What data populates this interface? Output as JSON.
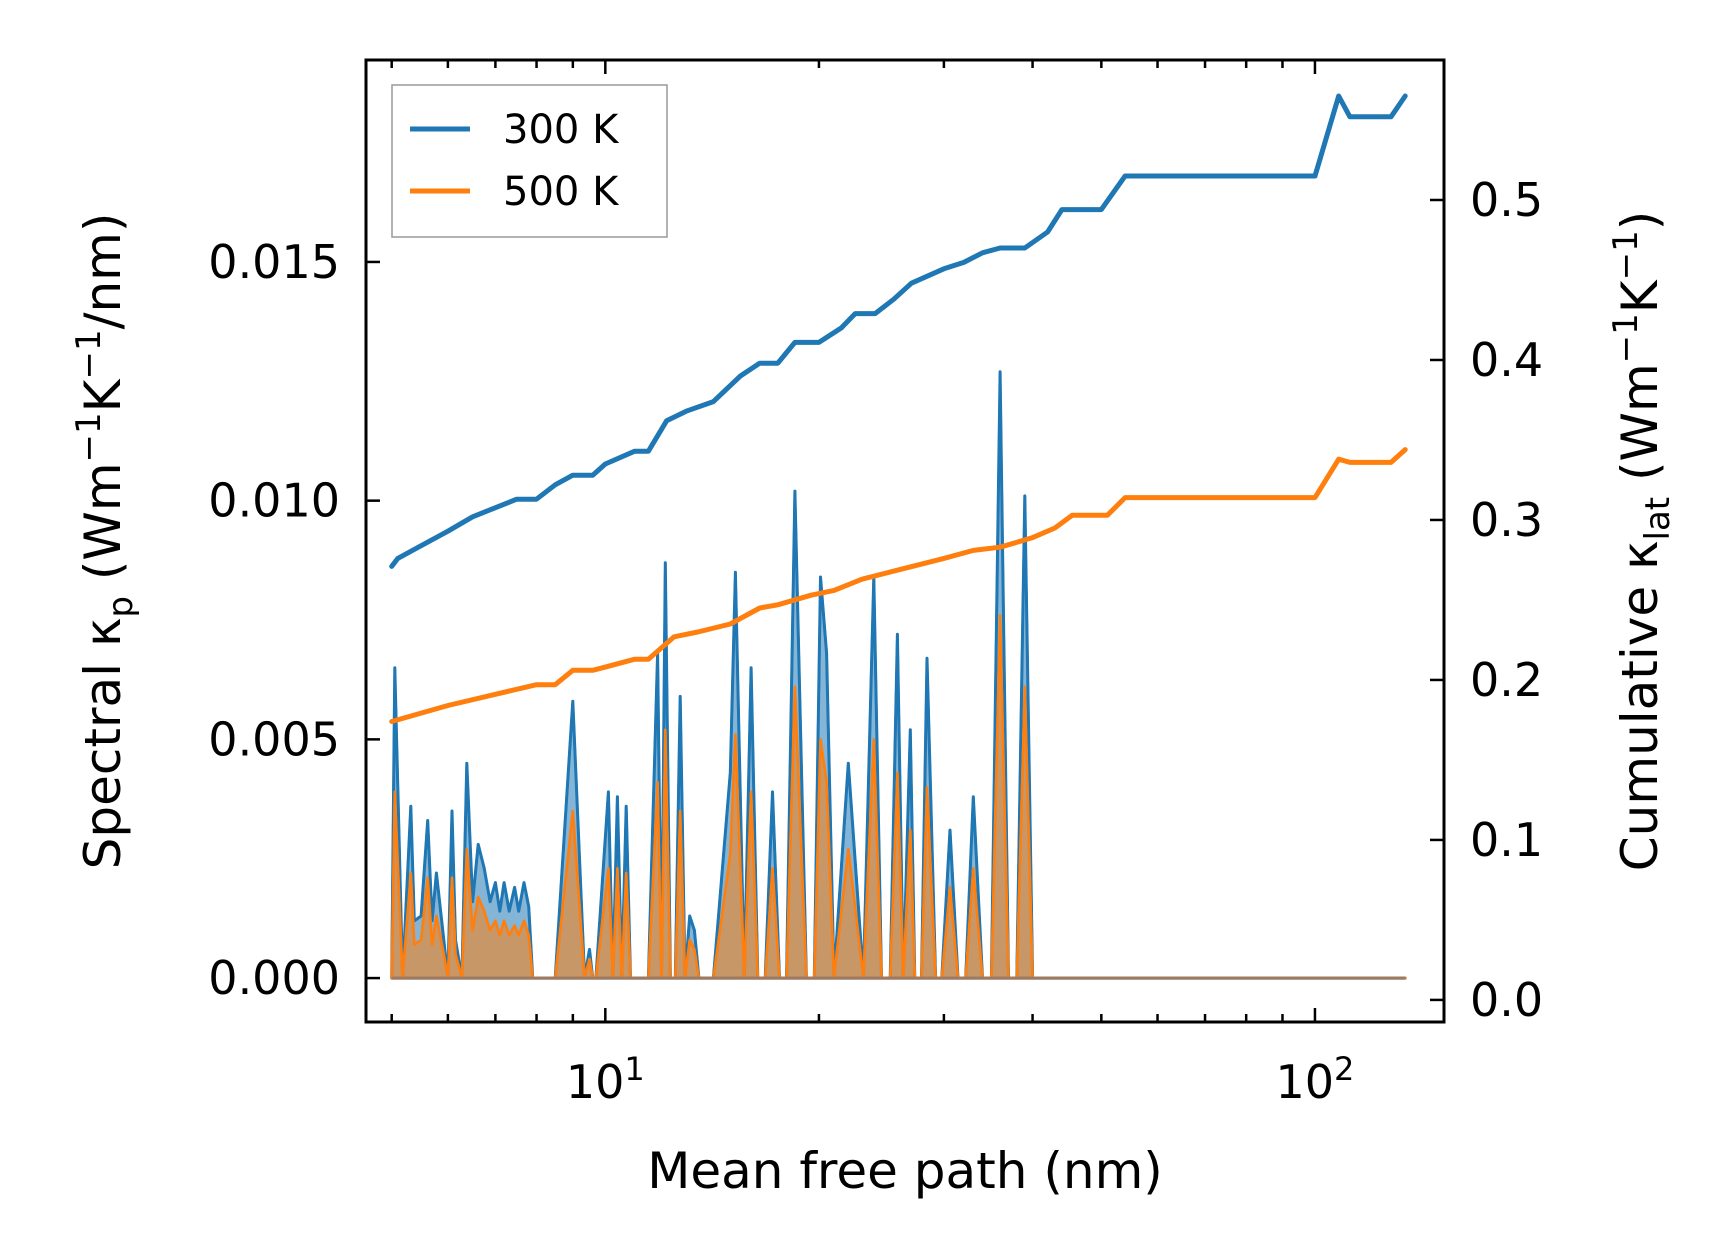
{
  "chart_data": {
    "type": "line",
    "x_scale": "log",
    "xlabel": "Mean free path (nm)",
    "xlim": [
      4.6,
      152
    ],
    "x_tick_labels": [
      {
        "value": 10,
        "base": "10",
        "exp": "1"
      },
      {
        "value": 100,
        "base": "10",
        "exp": "2"
      }
    ],
    "left_axis": {
      "label_parts": [
        "Spectral κ",
        "p",
        " (Wm",
        "−1",
        "K",
        "−1",
        "/nm)"
      ],
      "ylim": [
        -0.00092,
        0.01923
      ],
      "ticks": [
        0.0,
        0.005,
        0.01,
        0.015
      ],
      "tick_labels": [
        "0.000",
        "0.005",
        "0.010",
        "0.015"
      ]
    },
    "right_axis": {
      "label_parts": [
        "Cumulative κ",
        "lat",
        " (Wm",
        "−1",
        "K",
        "−1",
        ")"
      ],
      "ylim": [
        -0.0138,
        0.5875
      ],
      "ticks": [
        0.0,
        0.1,
        0.2,
        0.3,
        0.4,
        0.5
      ],
      "tick_labels": [
        "0.0",
        "0.1",
        "0.2",
        "0.3",
        "0.4",
        "0.5"
      ]
    },
    "legend": {
      "position": "top-left",
      "entries": [
        {
          "label": "300 K",
          "color": "#1f77b4"
        },
        {
          "label": "500 K",
          "color": "#ff7f0e"
        }
      ]
    },
    "series": [
      {
        "name": "300 K",
        "axis": "right",
        "kind": "cumulative",
        "color": "#1f77b4",
        "x": [
          5.0,
          5.1,
          5.4,
          6.0,
          6.5,
          7.5,
          8.0,
          8.5,
          9.0,
          9.6,
          10.0,
          11.0,
          11.5,
          12.2,
          13.0,
          14.2,
          15.5,
          16.5,
          17.5,
          18.5,
          20.0,
          21.5,
          22.5,
          24.0,
          25.5,
          27.0,
          30.0,
          32.0,
          34.0,
          36.0,
          39.0,
          42.0,
          44.0,
          45.5,
          50.0,
          54.0,
          100.0,
          108.0,
          112.0,
          128.0,
          134.0
        ],
        "y": [
          0.271,
          0.276,
          0.282,
          0.293,
          0.302,
          0.313,
          0.313,
          0.322,
          0.328,
          0.328,
          0.335,
          0.343,
          0.343,
          0.362,
          0.368,
          0.374,
          0.39,
          0.398,
          0.398,
          0.411,
          0.411,
          0.42,
          0.429,
          0.429,
          0.438,
          0.448,
          0.457,
          0.461,
          0.467,
          0.47,
          0.47,
          0.48,
          0.494,
          0.494,
          0.494,
          0.515,
          0.515,
          0.565,
          0.552,
          0.552,
          0.565
        ]
      },
      {
        "name": "500 K",
        "axis": "right",
        "kind": "cumulative",
        "color": "#ff7f0e",
        "x": [
          5.0,
          6.0,
          7.0,
          8.0,
          8.5,
          9.0,
          9.6,
          10.0,
          11.0,
          11.5,
          12.5,
          13.5,
          15.0,
          16.5,
          17.5,
          19.5,
          21.0,
          23.0,
          26.0,
          30.0,
          33.0,
          36.0,
          40.0,
          43.0,
          45.5,
          51.0,
          54.0,
          100.0,
          108.0,
          112.0,
          128.0,
          134.0
        ],
        "y": [
          0.174,
          0.184,
          0.191,
          0.197,
          0.197,
          0.206,
          0.206,
          0.208,
          0.213,
          0.213,
          0.227,
          0.23,
          0.235,
          0.245,
          0.247,
          0.253,
          0.256,
          0.263,
          0.269,
          0.276,
          0.281,
          0.283,
          0.289,
          0.295,
          0.303,
          0.303,
          0.314,
          0.314,
          0.338,
          0.336,
          0.336,
          0.344
        ]
      },
      {
        "name": "300 K spectral",
        "axis": "left",
        "kind": "spectral",
        "color": "#1f77b4",
        "x": [
          5.0,
          5.05,
          5.18,
          5.32,
          5.38,
          5.5,
          5.62,
          5.7,
          5.78,
          5.92,
          6.0,
          6.08,
          6.15,
          6.28,
          6.38,
          6.5,
          6.62,
          6.75,
          6.88,
          7.0,
          7.1,
          7.2,
          7.32,
          7.45,
          7.55,
          7.68,
          7.8,
          7.9,
          8.05,
          8.5,
          9.0,
          9.35,
          9.5,
          9.6,
          9.7,
          10.1,
          10.25,
          10.4,
          10.55,
          10.7,
          10.85,
          11.0,
          11.5,
          11.85,
          12.0,
          12.15,
          12.35,
          12.55,
          12.75,
          12.95,
          13.15,
          13.35,
          13.55,
          13.8,
          14.0,
          14.2,
          15.0,
          15.25,
          15.7,
          16.05,
          16.4,
          16.8,
          17.2,
          17.6,
          18.0,
          18.5,
          19.2,
          19.7,
          20.1,
          20.5,
          21.0,
          22.0,
          23.1,
          23.9,
          24.5,
          25.2,
          25.8,
          26.3,
          26.9,
          27.3,
          27.9,
          28.4,
          29.2,
          29.8,
          30.6,
          31.4,
          32.2,
          33.0,
          34.0,
          35.0,
          36.0,
          37.0,
          38.0,
          39.0,
          40.0,
          41.0,
          42.0,
          43.0,
          43.6,
          44.3,
          45.0,
          45.7,
          46.5,
          47.5,
          48.5,
          49.5,
          51.0,
          52.5,
          53.5,
          54.5,
          56.0,
          58.0,
          100.0,
          107.0,
          110.0,
          111.2,
          112.5,
          114.0,
          128.0,
          130.0,
          132.5,
          134.0
        ],
        "y": [
          0.0,
          0.0065,
          0.0,
          0.0036,
          0.0012,
          0.0013,
          0.0033,
          0.0012,
          0.0022,
          0.0008,
          0.0,
          0.0035,
          0.0008,
          0.0,
          0.0045,
          0.0016,
          0.0028,
          0.0023,
          0.0016,
          0.002,
          0.0014,
          0.002,
          0.0014,
          0.0019,
          0.0014,
          0.002,
          0.0015,
          0.0,
          0.0,
          0.0,
          0.0058,
          0.0,
          0.0006,
          0.0,
          0.0,
          0.0039,
          0.0,
          0.0038,
          0.0,
          0.0036,
          0.0,
          0.0,
          0.0,
          0.0068,
          0.0,
          0.0087,
          0.0,
          0.0,
          0.0059,
          0.0,
          0.0013,
          0.001,
          0.0,
          0.0,
          0.0,
          0.0,
          0.0043,
          0.0085,
          0.0,
          0.0065,
          0.0,
          0.0,
          0.0039,
          0.0,
          0.0,
          0.0102,
          0.0,
          0.0,
          0.0084,
          0.0068,
          0.0,
          0.0045,
          0.0,
          0.0084,
          0.0,
          0.0,
          0.0072,
          0.0,
          0.0052,
          0.0,
          0.0,
          0.0067,
          0.0,
          0.0,
          0.0031,
          0.0,
          0.0,
          0.0038,
          0.0,
          0.0,
          0.0127,
          0.0,
          0.0,
          0.0101,
          0.0,
          0.0,
          0.0,
          0.0,
          0.0,
          0.0,
          0.0,
          0.0,
          0.0,
          0.0,
          0.0,
          0.0,
          0.0,
          0.0,
          0.0,
          0.0,
          0.0,
          0.0,
          0.0,
          0.0,
          0.0,
          0.0,
          0.0,
          0.0,
          0.0,
          0.0,
          0.0,
          0.0
        ]
      },
      {
        "name": "500 K spectral",
        "axis": "left",
        "kind": "spectral",
        "color": "#ff7f0e",
        "x": [
          5.0,
          5.05,
          5.18,
          5.32,
          5.38,
          5.5,
          5.62,
          5.7,
          5.78,
          5.92,
          6.0,
          6.08,
          6.15,
          6.28,
          6.38,
          6.5,
          6.62,
          6.75,
          6.88,
          7.0,
          7.1,
          7.2,
          7.32,
          7.45,
          7.55,
          7.68,
          7.8,
          7.9,
          8.05,
          8.5,
          9.0,
          9.35,
          9.5,
          9.6,
          9.7,
          10.1,
          10.25,
          10.4,
          10.55,
          10.7,
          10.85,
          11.0,
          11.5,
          11.85,
          12.0,
          12.15,
          12.35,
          12.55,
          12.75,
          12.95,
          13.15,
          13.35,
          13.55,
          13.8,
          14.0,
          14.2,
          15.0,
          15.25,
          15.7,
          16.05,
          16.4,
          16.8,
          17.2,
          17.6,
          18.0,
          18.5,
          19.2,
          19.7,
          20.1,
          20.5,
          21.0,
          22.0,
          23.1,
          23.9,
          24.5,
          25.2,
          25.8,
          26.3,
          26.9,
          27.3,
          27.9,
          28.4,
          29.2,
          29.8,
          30.6,
          31.4,
          32.2,
          33.0,
          34.0,
          35.0,
          36.0,
          37.0,
          38.0,
          39.0,
          40.0,
          41.0,
          42.0,
          43.0,
          43.6,
          44.3,
          45.0,
          45.7,
          46.5,
          47.5,
          48.5,
          49.5,
          51.0,
          52.5,
          53.5,
          54.5,
          56.0,
          58.0,
          100.0,
          107.0,
          110.0,
          111.2,
          112.5,
          114.0,
          128.0,
          130.0,
          132.5,
          134.0
        ],
        "y": [
          0.0,
          0.0039,
          0.0,
          0.0022,
          0.0007,
          0.0008,
          0.0021,
          0.0007,
          0.0013,
          0.0005,
          0.0,
          0.0021,
          0.0005,
          0.0,
          0.0027,
          0.001,
          0.0017,
          0.0014,
          0.001,
          0.0012,
          0.0009,
          0.0012,
          0.0009,
          0.0011,
          0.0009,
          0.0012,
          0.0009,
          0.0,
          0.0,
          0.0,
          0.0035,
          0.0,
          0.0004,
          0.0,
          0.0,
          0.0023,
          0.0,
          0.0023,
          0.0,
          0.0022,
          0.0,
          0.0,
          0.0,
          0.0041,
          0.0,
          0.0052,
          0.0,
          0.0,
          0.0035,
          0.0,
          0.0008,
          0.0006,
          0.0,
          0.0,
          0.0,
          0.0,
          0.0026,
          0.0051,
          0.0,
          0.0039,
          0.0,
          0.0,
          0.0023,
          0.0,
          0.0,
          0.0061,
          0.0,
          0.0,
          0.005,
          0.0041,
          0.0,
          0.0027,
          0.0,
          0.005,
          0.0,
          0.0,
          0.0043,
          0.0,
          0.0031,
          0.0,
          0.0,
          0.004,
          0.0,
          0.0,
          0.0019,
          0.0,
          0.0,
          0.0023,
          0.0,
          0.0,
          0.0076,
          0.0,
          0.0,
          0.0061,
          0.0,
          0.0,
          0.0,
          0.0,
          0.0,
          0.0,
          0.0,
          0.0,
          0.0,
          0.0,
          0.0,
          0.0,
          0.0,
          0.0,
          0.0,
          0.0,
          0.0,
          0.0,
          0.0,
          0.0,
          0.0,
          0.0,
          0.0,
          0.0,
          0.0,
          0.0,
          0.0,
          0.0
        ]
      }
    ]
  }
}
